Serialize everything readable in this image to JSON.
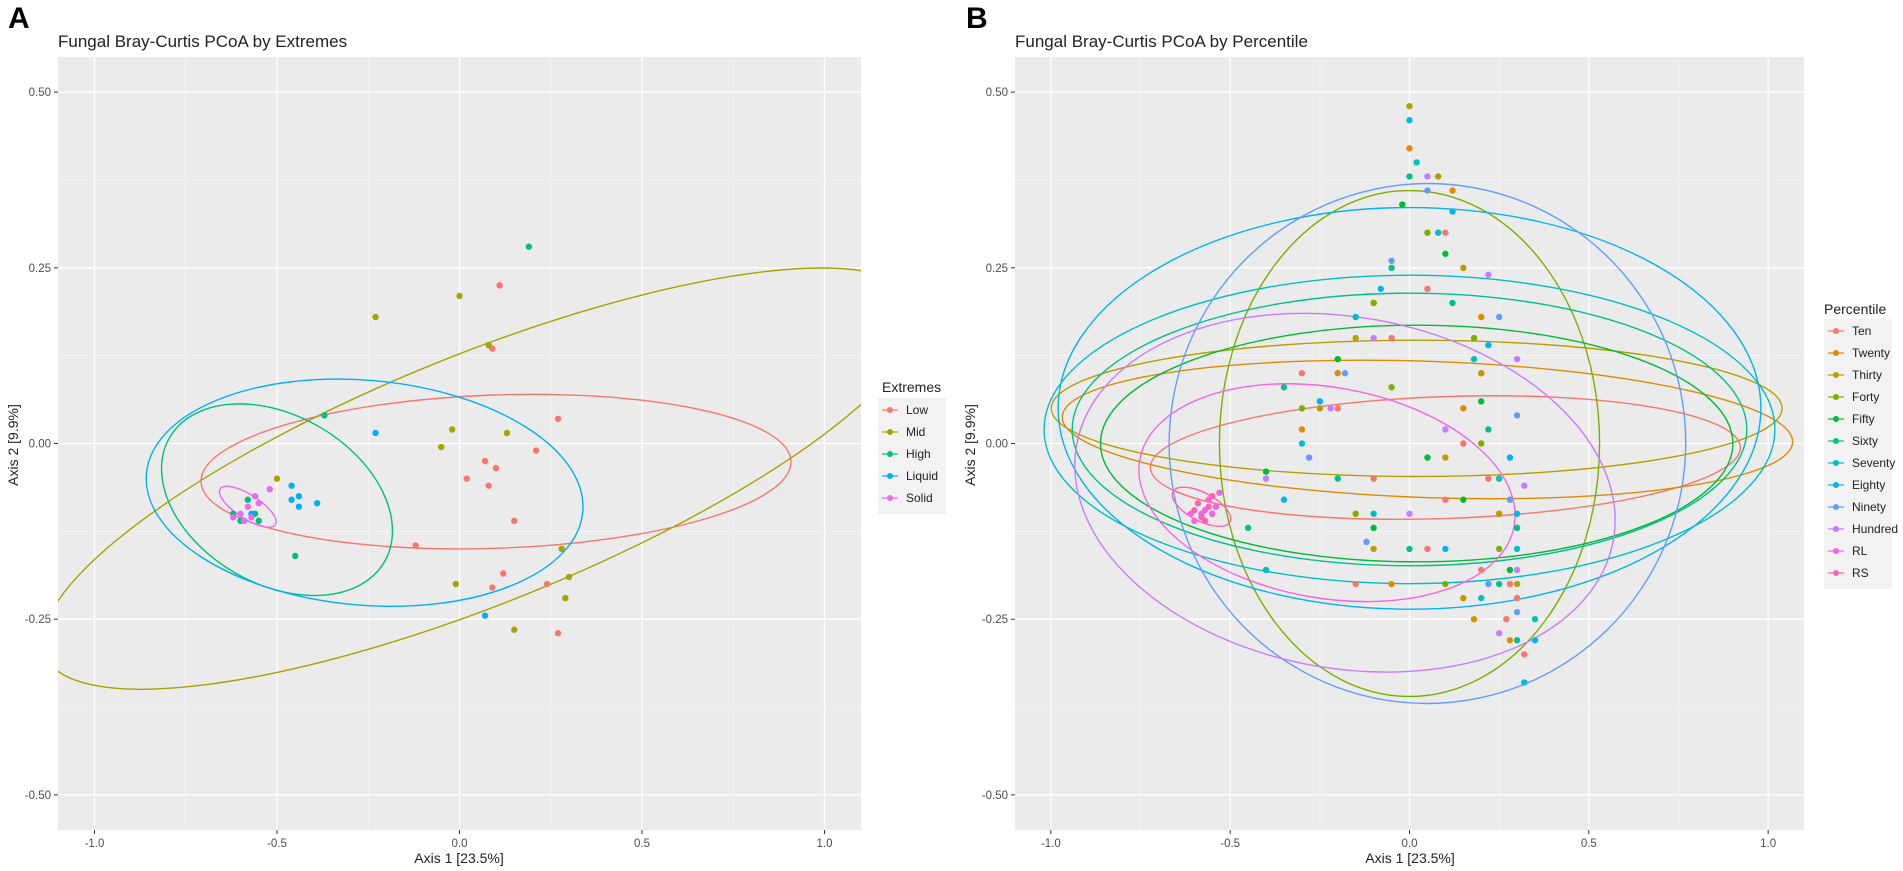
{
  "colors": {
    "panel_bg": "#ebebeb",
    "grid_major": "#ffffff",
    "grid_minor": "#f5f5f5",
    "text": "#4d4d4d"
  },
  "chart_data": [
    {
      "type": "scatter",
      "panel_label": "A",
      "title": "Fungal Bray-Curtis PCoA by Extremes",
      "xlabel": "Axis 1  [23.5%]",
      "ylabel": "Axis 2  [9.9%]",
      "xlim": [
        -1.1,
        1.1
      ],
      "ylim": [
        -0.55,
        0.55
      ],
      "xticks": [
        -1.0,
        -0.5,
        0.0,
        0.5,
        1.0
      ],
      "xtick_labels": [
        "-1.0",
        "-0.5",
        "0.0",
        "0.5",
        "1.0"
      ],
      "yticks": [
        -0.5,
        -0.25,
        0.0,
        0.25,
        0.5
      ],
      "ytick_labels": [
        "-0.50",
        "-0.25",
        "0.00",
        "0.25",
        "0.50"
      ],
      "legend_title": "Extremes",
      "series": [
        {
          "name": "Low",
          "color": "#F8766D",
          "points": [
            [
              0.11,
              0.225
            ],
            [
              0.09,
              0.135
            ],
            [
              0.27,
              0.035
            ],
            [
              0.07,
              -0.025
            ],
            [
              0.1,
              -0.035
            ],
            [
              0.21,
              -0.01
            ],
            [
              0.02,
              -0.05
            ],
            [
              0.08,
              -0.06
            ],
            [
              0.15,
              -0.11
            ],
            [
              0.12,
              -0.185
            ],
            [
              0.09,
              -0.205
            ],
            [
              -0.12,
              -0.145
            ],
            [
              0.24,
              -0.2
            ],
            [
              0.27,
              -0.27
            ]
          ],
          "ellipse": {
            "cx": 0.1,
            "cy": -0.04,
            "rx": 0.21,
            "ry": 0.42,
            "angle": 92
          }
        },
        {
          "name": "Mid",
          "color": "#A3A500",
          "points": [
            [
              -0.23,
              0.18
            ],
            [
              0.0,
              0.21
            ],
            [
              0.08,
              0.14
            ],
            [
              0.13,
              0.015
            ],
            [
              -0.02,
              0.02
            ],
            [
              -0.05,
              -0.005
            ],
            [
              0.28,
              -0.15
            ],
            [
              0.3,
              -0.19
            ],
            [
              0.29,
              -0.22
            ],
            [
              0.15,
              -0.265
            ],
            [
              -0.01,
              -0.2
            ],
            [
              -0.5,
              -0.05
            ]
          ],
          "ellipse": {
            "cx": 0.06,
            "cy": -0.05,
            "rx": 0.34,
            "ry": 0.67,
            "angle": 112
          }
        },
        {
          "name": "High",
          "color": "#00BF7D",
          "points": [
            [
              0.19,
              0.28
            ],
            [
              -0.37,
              0.04
            ],
            [
              -0.62,
              -0.1
            ],
            [
              -0.6,
              -0.11
            ],
            [
              -0.58,
              -0.08
            ],
            [
              -0.56,
              -0.1
            ],
            [
              -0.55,
              -0.11
            ],
            [
              -0.45,
              -0.16
            ]
          ],
          "ellipse": {
            "cx": -0.5,
            "cy": -0.08,
            "rx": 0.34,
            "ry": 0.12,
            "angle": -30
          }
        },
        {
          "name": "Liquid",
          "color": "#00B0F6",
          "points": [
            [
              -0.23,
              0.015
            ],
            [
              -0.46,
              -0.06
            ],
            [
              -0.44,
              -0.075
            ],
            [
              -0.46,
              -0.08
            ],
            [
              -0.39,
              -0.085
            ],
            [
              -0.44,
              -0.09
            ],
            [
              -0.57,
              -0.1
            ],
            [
              0.07,
              -0.245
            ]
          ],
          "ellipse": {
            "cx": -0.26,
            "cy": -0.07,
            "rx": 0.6,
            "ry": 0.16,
            "angle": -5
          }
        },
        {
          "name": "Solid",
          "color": "#E76BF3",
          "points": [
            [
              -0.6,
              -0.1
            ],
            [
              -0.58,
              -0.09
            ],
            [
              -0.55,
              -0.085
            ],
            [
              -0.52,
              -0.065
            ],
            [
              -0.59,
              -0.11
            ],
            [
              -0.57,
              -0.105
            ],
            [
              -0.62,
              -0.105
            ],
            [
              -0.56,
              -0.075
            ]
          ],
          "ellipse": {
            "cx": -0.58,
            "cy": -0.09,
            "rx": 0.09,
            "ry": 0.017,
            "angle": -33
          }
        }
      ]
    },
    {
      "type": "scatter",
      "panel_label": "B",
      "title": "Fungal Bray-Curtis PCoA by Percentile",
      "xlabel": "Axis 1  [23.5%]",
      "ylabel": "Axis 2  [9.9%]",
      "xlim": [
        -1.1,
        1.1
      ],
      "ylim": [
        -0.55,
        0.55
      ],
      "xticks": [
        -1.0,
        -0.5,
        0.0,
        0.5,
        1.0
      ],
      "xtick_labels": [
        "-1.0",
        "-0.5",
        "0.0",
        "0.5",
        "1.0"
      ],
      "yticks": [
        -0.5,
        -0.25,
        0.0,
        0.25,
        0.5
      ],
      "ytick_labels": [
        "-0.50",
        "-0.25",
        "0.00",
        "0.25",
        "0.50"
      ],
      "legend_title": "Percentile",
      "series": [
        {
          "name": "Ten",
          "color": "#F8766D",
          "points": [
            [
              0.1,
              0.3
            ],
            [
              0.05,
              0.22
            ],
            [
              -0.05,
              0.15
            ],
            [
              0.2,
              0.1
            ],
            [
              -0.2,
              0.05
            ],
            [
              0.15,
              0.0
            ],
            [
              -0.1,
              -0.05
            ],
            [
              0.25,
              -0.1
            ],
            [
              0.28,
              -0.2
            ],
            [
              0.3,
              -0.22
            ],
            [
              0.05,
              -0.15
            ],
            [
              -0.15,
              -0.2
            ],
            [
              0.2,
              -0.18
            ],
            [
              0.32,
              -0.3
            ],
            [
              0.27,
              -0.25
            ],
            [
              -0.3,
              0.1
            ],
            [
              0.22,
              -0.05
            ],
            [
              0.1,
              -0.08
            ]
          ],
          "ellipse": {
            "cx": 0.1,
            "cy": -0.02,
            "rx": 0.17,
            "ry": 0.42,
            "angle": 92
          }
        },
        {
          "name": "Twenty",
          "color": "#DE8C00",
          "points": [
            [
              0.0,
              0.42
            ],
            [
              0.12,
              0.36
            ],
            [
              -0.1,
              0.2
            ],
            [
              0.2,
              0.18
            ],
            [
              -0.2,
              0.1
            ],
            [
              0.15,
              0.05
            ],
            [
              -0.3,
              0.02
            ],
            [
              0.25,
              -0.05
            ],
            [
              0.3,
              -0.12
            ],
            [
              -0.05,
              -0.2
            ],
            [
              0.28,
              -0.28
            ],
            [
              0.18,
              -0.25
            ]
          ],
          "ellipse": {
            "cx": 0.05,
            "cy": 0.02,
            "rx": 0.19,
            "ry": 0.52,
            "angle": 88
          }
        },
        {
          "name": "Thirty",
          "color": "#B79F00",
          "points": [
            [
              0.0,
              0.48
            ],
            [
              0.08,
              0.38
            ],
            [
              0.15,
              0.25
            ],
            [
              -0.15,
              0.15
            ],
            [
              0.2,
              0.1
            ],
            [
              -0.25,
              0.05
            ],
            [
              0.1,
              -0.02
            ],
            [
              0.25,
              -0.1
            ],
            [
              -0.1,
              -0.15
            ],
            [
              0.3,
              -0.2
            ],
            [
              0.15,
              -0.22
            ]
          ],
          "ellipse": {
            "cx": 0.02,
            "cy": 0.05,
            "rx": 0.19,
            "ry": 0.52,
            "angle": 90
          }
        },
        {
          "name": "Forty",
          "color": "#7CAE00",
          "points": [
            [
              0.05,
              0.3
            ],
            [
              -0.1,
              0.2
            ],
            [
              0.18,
              0.15
            ],
            [
              -0.3,
              0.05
            ],
            [
              0.2,
              0.0
            ],
            [
              -0.15,
              -0.1
            ],
            [
              0.25,
              -0.15
            ],
            [
              0.1,
              -0.2
            ],
            [
              -0.05,
              0.08
            ]
          ],
          "ellipse": {
            "cx": 0.0,
            "cy": 0.0,
            "rx": 0.53,
            "ry": 0.36,
            "angle": 0
          }
        },
        {
          "name": "Fifty",
          "color": "#00BA38",
          "points": [
            [
              -0.02,
              0.34
            ],
            [
              0.1,
              0.27
            ],
            [
              -0.2,
              0.12
            ],
            [
              0.2,
              0.06
            ],
            [
              -0.4,
              -0.04
            ],
            [
              0.15,
              -0.08
            ],
            [
              -0.1,
              -0.12
            ],
            [
              0.28,
              -0.18
            ],
            [
              0.05,
              -0.02
            ],
            [
              -0.55,
              -0.1
            ]
          ],
          "ellipse": {
            "cx": 0.02,
            "cy": 0.0,
            "rx": 0.33,
            "ry": 0.45,
            "angle": 90
          }
        },
        {
          "name": "Sixty",
          "color": "#00C08B",
          "points": [
            [
              0.0,
              0.38
            ],
            [
              -0.05,
              0.25
            ],
            [
              0.12,
              0.2
            ],
            [
              -0.35,
              0.08
            ],
            [
              0.22,
              0.02
            ],
            [
              -0.2,
              -0.05
            ],
            [
              0.3,
              -0.12
            ],
            [
              0.0,
              -0.15
            ],
            [
              -0.45,
              -0.12
            ],
            [
              0.25,
              -0.2
            ],
            [
              0.3,
              -0.28
            ]
          ],
          "ellipse": {
            "cx": 0.0,
            "cy": 0.02,
            "rx": 0.38,
            "ry": 0.48,
            "angle": 90
          }
        },
        {
          "name": "Seventy",
          "color": "#00BFC4",
          "points": [
            [
              0.02,
              0.4
            ],
            [
              0.08,
              0.3
            ],
            [
              -0.15,
              0.18
            ],
            [
              0.18,
              0.12
            ],
            [
              -0.3,
              0.0
            ],
            [
              0.25,
              -0.05
            ],
            [
              -0.1,
              -0.1
            ],
            [
              0.3,
              -0.15
            ],
            [
              -0.4,
              -0.18
            ],
            [
              0.2,
              -0.22
            ],
            [
              0.35,
              -0.25
            ]
          ],
          "ellipse": {
            "cx": 0.0,
            "cy": 0.02,
            "rx": 0.43,
            "ry": 0.52,
            "angle": 90
          }
        },
        {
          "name": "Eighty",
          "color": "#00B4F0",
          "points": [
            [
              0.0,
              0.46
            ],
            [
              0.12,
              0.33
            ],
            [
              -0.08,
              0.22
            ],
            [
              0.22,
              0.14
            ],
            [
              -0.25,
              0.06
            ],
            [
              0.28,
              -0.02
            ],
            [
              -0.35,
              -0.08
            ],
            [
              0.3,
              -0.1
            ],
            [
              0.1,
              -0.15
            ],
            [
              0.35,
              -0.28
            ],
            [
              0.32,
              -0.34
            ]
          ],
          "ellipse": {
            "cx": 0.0,
            "cy": 0.05,
            "rx": 0.56,
            "ry": 0.5,
            "angle": 90
          }
        },
        {
          "name": "Ninety",
          "color": "#619CFF",
          "points": [
            [
              0.05,
              0.36
            ],
            [
              -0.05,
              0.26
            ],
            [
              0.25,
              0.18
            ],
            [
              -0.18,
              0.1
            ],
            [
              0.3,
              0.04
            ],
            [
              -0.28,
              -0.02
            ],
            [
              0.28,
              -0.08
            ],
            [
              -0.12,
              -0.14
            ],
            [
              0.22,
              -0.2
            ],
            [
              0.3,
              -0.24
            ]
          ],
          "ellipse": {
            "cx": 0.05,
            "cy": 0.0,
            "rx": 0.72,
            "ry": 0.37,
            "angle": -10
          }
        },
        {
          "name": "Hundred",
          "color": "#C77CFF",
          "points": [
            [
              0.05,
              0.38
            ],
            [
              0.22,
              0.24
            ],
            [
              -0.1,
              0.15
            ],
            [
              0.3,
              0.12
            ],
            [
              -0.22,
              0.05
            ],
            [
              0.1,
              0.02
            ],
            [
              0.32,
              -0.06
            ],
            [
              0.0,
              -0.1
            ],
            [
              0.3,
              -0.18
            ],
            [
              -0.4,
              -0.05
            ],
            [
              0.25,
              -0.27
            ]
          ],
          "ellipse": {
            "cx": -0.18,
            "cy": -0.07,
            "rx": 0.76,
            "ry": 0.25,
            "angle": -10
          }
        },
        {
          "name": "RL",
          "color": "#F564E3",
          "points": [
            [
              -0.58,
              -0.1
            ],
            [
              -0.56,
              -0.08
            ],
            [
              -0.54,
              -0.09
            ],
            [
              -0.6,
              -0.11
            ],
            [
              -0.57,
              -0.095
            ],
            [
              -0.53,
              -0.07
            ],
            [
              -0.55,
              -0.1
            ],
            [
              -0.61,
              -0.1
            ]
          ],
          "ellipse": {
            "cx": -0.23,
            "cy": -0.07,
            "rx": 0.53,
            "ry": 0.15,
            "angle": -10
          }
        },
        {
          "name": "RS",
          "color": "#FF64B0",
          "points": [
            [
              -0.6,
              -0.095
            ],
            [
              -0.58,
              -0.105
            ],
            [
              -0.56,
              -0.09
            ],
            [
              -0.59,
              -0.085
            ],
            [
              -0.57,
              -0.11
            ],
            [
              -0.55,
              -0.075
            ]
          ],
          "ellipse": {
            "cx": -0.58,
            "cy": -0.09,
            "rx": 0.09,
            "ry": 0.02,
            "angle": -28
          }
        }
      ]
    }
  ]
}
